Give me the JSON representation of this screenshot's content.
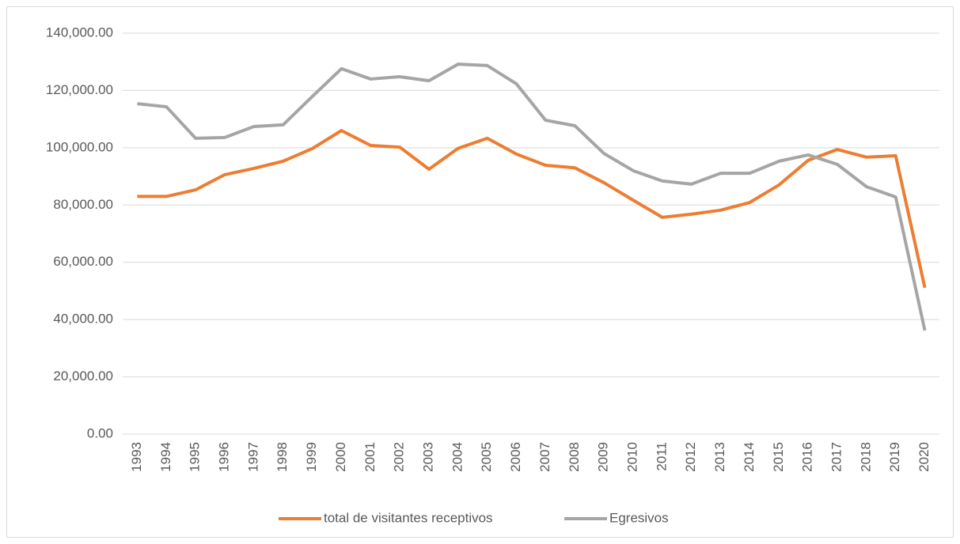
{
  "chart_data": {
    "type": "line",
    "categories": [
      "1993",
      "1994",
      "1995",
      "1996",
      "1997",
      "1998",
      "1999",
      "2000",
      "2001",
      "2002",
      "2003",
      "2004",
      "2005",
      "2006",
      "2007",
      "2008",
      "2009",
      "2010",
      "2011",
      "2012",
      "2013",
      "2014",
      "2015",
      "2016",
      "2017",
      "2018",
      "2019",
      "2020"
    ],
    "series": [
      {
        "name": "total de visitantes receptivos",
        "color": "#ed7d31",
        "values": [
          83000,
          83000,
          85300,
          90600,
          92800,
          95300,
          99700,
          106000,
          100800,
          100200,
          92500,
          99800,
          103300,
          97800,
          93900,
          93000,
          87800,
          81700,
          75700,
          76800,
          78200,
          80900,
          87000,
          95600,
          99400,
          96700,
          97200,
          51100
        ]
      },
      {
        "name": "Egresivos",
        "color": "#a5a5a5",
        "values": [
          115400,
          114300,
          103300,
          103600,
          107400,
          108000,
          117900,
          127600,
          124000,
          124800,
          123400,
          129200,
          128700,
          122300,
          109600,
          107700,
          98000,
          92000,
          88400,
          87300,
          91100,
          91100,
          95300,
          97500,
          94200,
          86400,
          82800,
          36200
        ]
      }
    ],
    "ylim": [
      0,
      140000
    ],
    "yticks": [
      {
        "value": 0,
        "label": "0.00"
      },
      {
        "value": 20000,
        "label": "20,000.00"
      },
      {
        "value": 40000,
        "label": "40,000.00"
      },
      {
        "value": 60000,
        "label": "60,000.00"
      },
      {
        "value": 80000,
        "label": "80,000.00"
      },
      {
        "value": 100000,
        "label": "100,000.00"
      },
      {
        "value": 120000,
        "label": "120,000.00"
      },
      {
        "value": 140000,
        "label": "140,000.00"
      }
    ],
    "grid": true,
    "legend": "bottom"
  }
}
